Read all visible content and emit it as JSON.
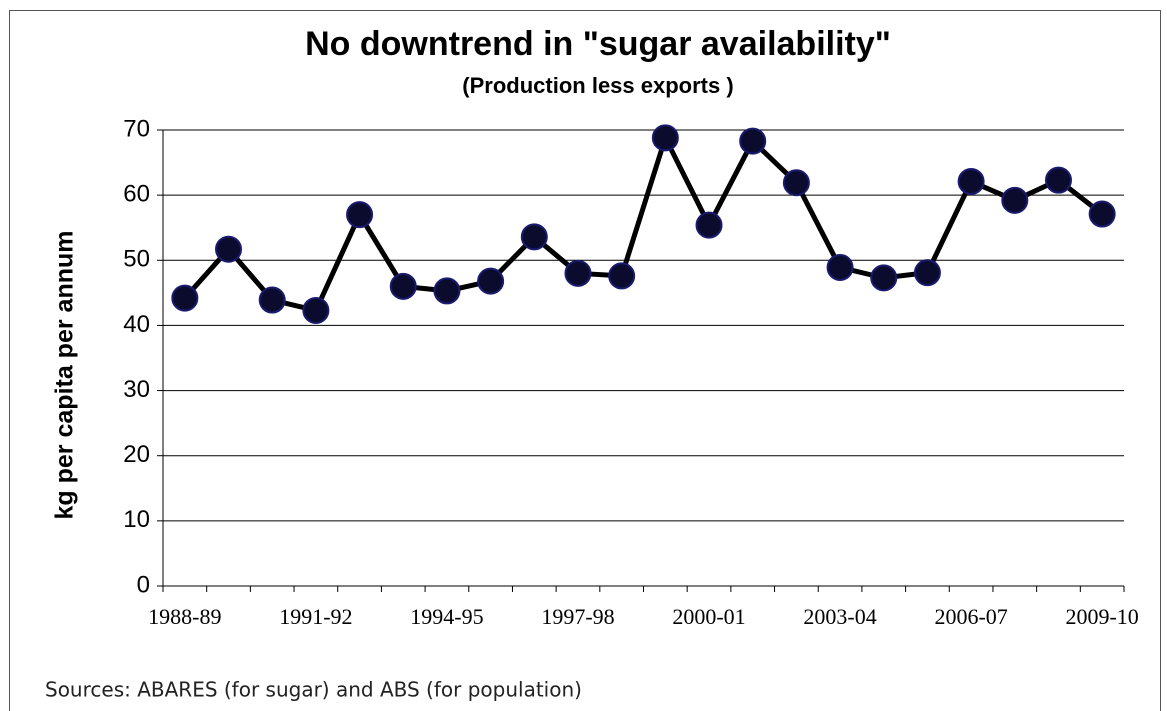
{
  "chart_data": {
    "type": "line",
    "title": "No downtrend in \"sugar availability\"",
    "subtitle": "(Production less exports )",
    "y_label": "kg per capita per annum",
    "source": "Sources: ABARES (for sugar) and ABS (for population)",
    "categories": [
      "1988-89",
      null,
      null,
      "1991-92",
      null,
      null,
      "1994-95",
      null,
      null,
      "1997-98",
      null,
      null,
      "2000-01",
      null,
      null,
      "2003-04",
      null,
      null,
      "2006-07",
      null,
      null,
      "2009-10"
    ],
    "values": [
      44.2,
      51.7,
      43.9,
      42.3,
      57.0,
      46.0,
      45.3,
      46.8,
      53.6,
      48.0,
      47.6,
      68.8,
      55.4,
      68.3,
      61.9,
      48.9,
      47.3,
      48.1,
      62.1,
      59.2,
      62.3,
      57.1
    ],
    "color": "#000000",
    "marker_color": "#0b0b2e",
    "ylim": [
      0,
      70
    ],
    "yticks": [
      0,
      10,
      20,
      30,
      40,
      50,
      60,
      70
    ],
    "grid": true
  }
}
